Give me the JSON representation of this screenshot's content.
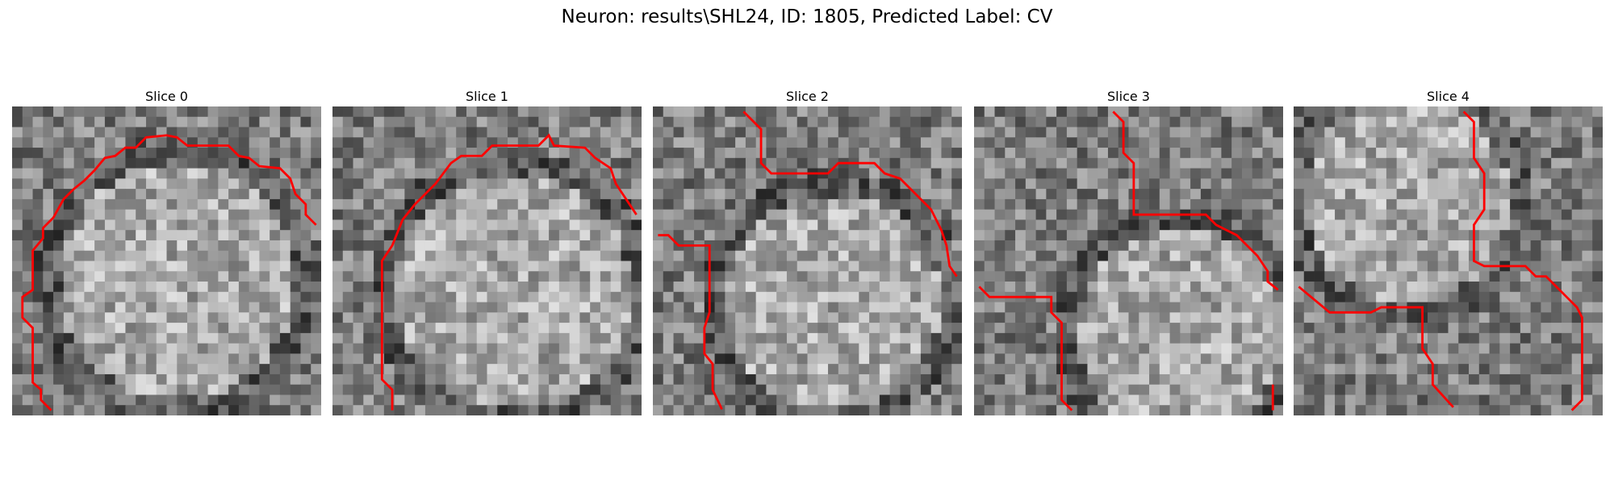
{
  "header": {
    "title": "Neuron: results\\SHL24, ID: 1805, Predicted Label: CV"
  },
  "panels": [
    {
      "title": "Slice 0"
    },
    {
      "title": "Slice 1"
    },
    {
      "title": "Slice 2"
    },
    {
      "title": "Slice 3"
    },
    {
      "title": "Slice 4"
    }
  ]
}
